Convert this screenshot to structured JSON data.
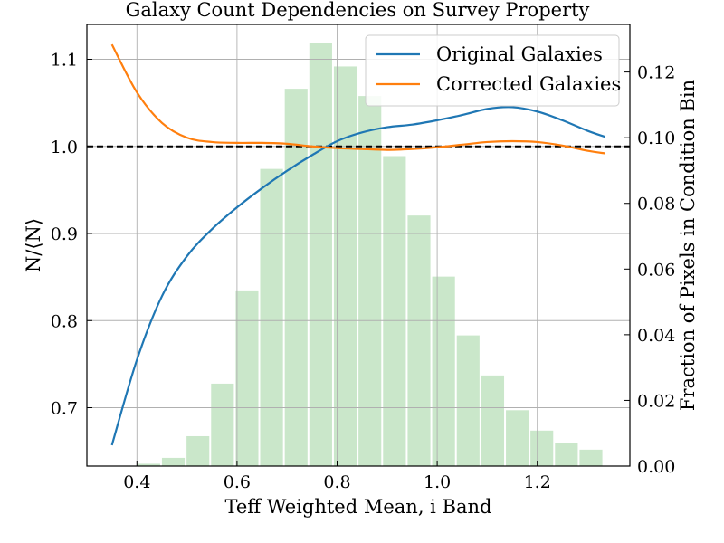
{
  "chart_data": {
    "type": "line",
    "title": "Galaxy Count Dependencies on Survey Property",
    "xlabel": "Teff Weighted Mean, i Band",
    "ylabel": "N/⟨N⟩",
    "y2label": "Fraction of Pixels in Condition Bin",
    "xlim": [
      0.3,
      1.385
    ],
    "ylim": [
      0.633,
      1.14
    ],
    "y2lim": [
      0.0,
      0.1345
    ],
    "xticks": [
      {
        "value": 0.4,
        "label": "0.4"
      },
      {
        "value": 0.6,
        "label": "0.6"
      },
      {
        "value": 0.8,
        "label": "0.8"
      },
      {
        "value": 1.0,
        "label": "1.0"
      },
      {
        "value": 1.2,
        "label": "1.2"
      }
    ],
    "yticks": [
      {
        "value": 0.7,
        "label": "0.7"
      },
      {
        "value": 0.8,
        "label": "0.8"
      },
      {
        "value": 0.9,
        "label": "0.9"
      },
      {
        "value": 1.0,
        "label": "1.0"
      },
      {
        "value": 1.1,
        "label": "1.1"
      }
    ],
    "y2ticks": [
      {
        "value": 0.0,
        "label": "0.00"
      },
      {
        "value": 0.02,
        "label": "0.02"
      },
      {
        "value": 0.04,
        "label": "0.04"
      },
      {
        "value": 0.06,
        "label": "0.06"
      },
      {
        "value": 0.08,
        "label": "0.08"
      },
      {
        "value": 0.1,
        "label": "0.10"
      },
      {
        "value": 0.12,
        "label": "0.12"
      }
    ],
    "grid": true,
    "legend": "top-right",
    "reference_line": {
      "y": 1.0,
      "style": "dashed",
      "color": "#000000"
    },
    "series": [
      {
        "name": "Original Galaxies",
        "color": "#1f77b4",
        "x": [
          0.35,
          0.4,
          0.45,
          0.5,
          0.55,
          0.6,
          0.65,
          0.7,
          0.75,
          0.8,
          0.85,
          0.9,
          0.95,
          1.0,
          1.05,
          1.1,
          1.15,
          1.2,
          1.25,
          1.3,
          1.335
        ],
        "y": [
          0.657,
          0.755,
          0.828,
          0.874,
          0.905,
          0.93,
          0.952,
          0.972,
          0.99,
          1.006,
          1.016,
          1.022,
          1.025,
          1.03,
          1.036,
          1.043,
          1.045,
          1.04,
          1.03,
          1.018,
          1.011
        ]
      },
      {
        "name": "Corrected Galaxies",
        "color": "#ff7f0e",
        "x": [
          0.35,
          0.4,
          0.45,
          0.5,
          0.55,
          0.6,
          0.65,
          0.7,
          0.75,
          0.8,
          0.85,
          0.9,
          0.95,
          1.0,
          1.05,
          1.1,
          1.15,
          1.2,
          1.25,
          1.3,
          1.335
        ],
        "y": [
          1.117,
          1.062,
          1.027,
          1.01,
          1.005,
          1.004,
          1.004,
          1.003,
          1.0,
          0.998,
          0.997,
          0.996,
          0.997,
          0.999,
          1.002,
          1.005,
          1.006,
          1.005,
          1.001,
          0.995,
          0.992
        ]
      }
    ],
    "histogram": {
      "color": "#2ca02c",
      "opacity": 0.25,
      "bin_edges": [
        0.35,
        0.3991,
        0.4482,
        0.4973,
        0.5464,
        0.5955,
        0.6445,
        0.6936,
        0.7427,
        0.7918,
        0.8409,
        0.89,
        0.9391,
        0.9882,
        1.0373,
        1.0864,
        1.1355,
        1.1845,
        1.2336,
        1.2827,
        1.3318
      ],
      "values": [
        0.0001,
        0.0007,
        0.0025,
        0.0091,
        0.0251,
        0.0535,
        0.0905,
        0.1149,
        0.1288,
        0.1217,
        0.1127,
        0.0944,
        0.0763,
        0.0577,
        0.0398,
        0.0276,
        0.017,
        0.0108,
        0.0069,
        0.005
      ]
    }
  }
}
